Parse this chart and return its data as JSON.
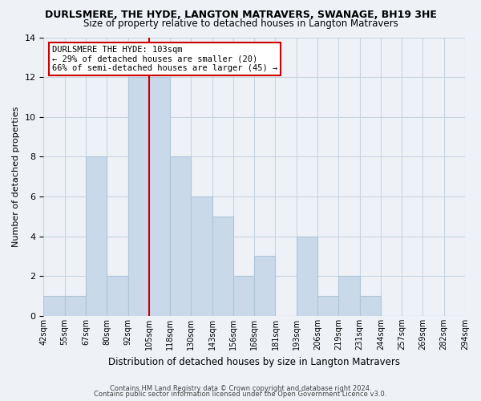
{
  "title1": "DURLSMERE, THE HYDE, LANGTON MATRAVERS, SWANAGE, BH19 3HE",
  "title2": "Size of property relative to detached houses in Langton Matravers",
  "xlabel": "Distribution of detached houses by size in Langton Matravers",
  "ylabel": "Number of detached properties",
  "footer1": "Contains HM Land Registry data © Crown copyright and database right 2024.",
  "footer2": "Contains public sector information licensed under the Open Government Licence v3.0.",
  "bin_labels": [
    "42sqm",
    "55sqm",
    "67sqm",
    "80sqm",
    "92sqm",
    "105sqm",
    "118sqm",
    "130sqm",
    "143sqm",
    "156sqm",
    "168sqm",
    "181sqm",
    "193sqm",
    "206sqm",
    "219sqm",
    "231sqm",
    "244sqm",
    "257sqm",
    "269sqm",
    "282sqm",
    "294sqm"
  ],
  "bar_values": [
    1,
    1,
    8,
    2,
    12,
    12,
    8,
    6,
    5,
    2,
    3,
    0,
    4,
    1,
    2,
    1,
    0,
    0,
    0,
    0
  ],
  "bar_color": "#c9d9ea",
  "bar_edge_color": "#aec6d8",
  "red_line_x": 5.0,
  "annotation_line1": "DURLSMERE THE HYDE: 103sqm",
  "annotation_line2": "← 29% of detached houses are smaller (20)",
  "annotation_line3": "66% of semi-detached houses are larger (45) →",
  "annotation_box_color": "white",
  "annotation_box_edge_color": "#cc0000",
  "ylim": [
    0,
    14
  ],
  "yticks": [
    0,
    2,
    4,
    6,
    8,
    10,
    12,
    14
  ],
  "background_color": "#eef2f7",
  "plot_bg_color": "#eef2f7",
  "grid_color": "#c8d4e0",
  "title1_fontsize": 9,
  "title2_fontsize": 8.5
}
